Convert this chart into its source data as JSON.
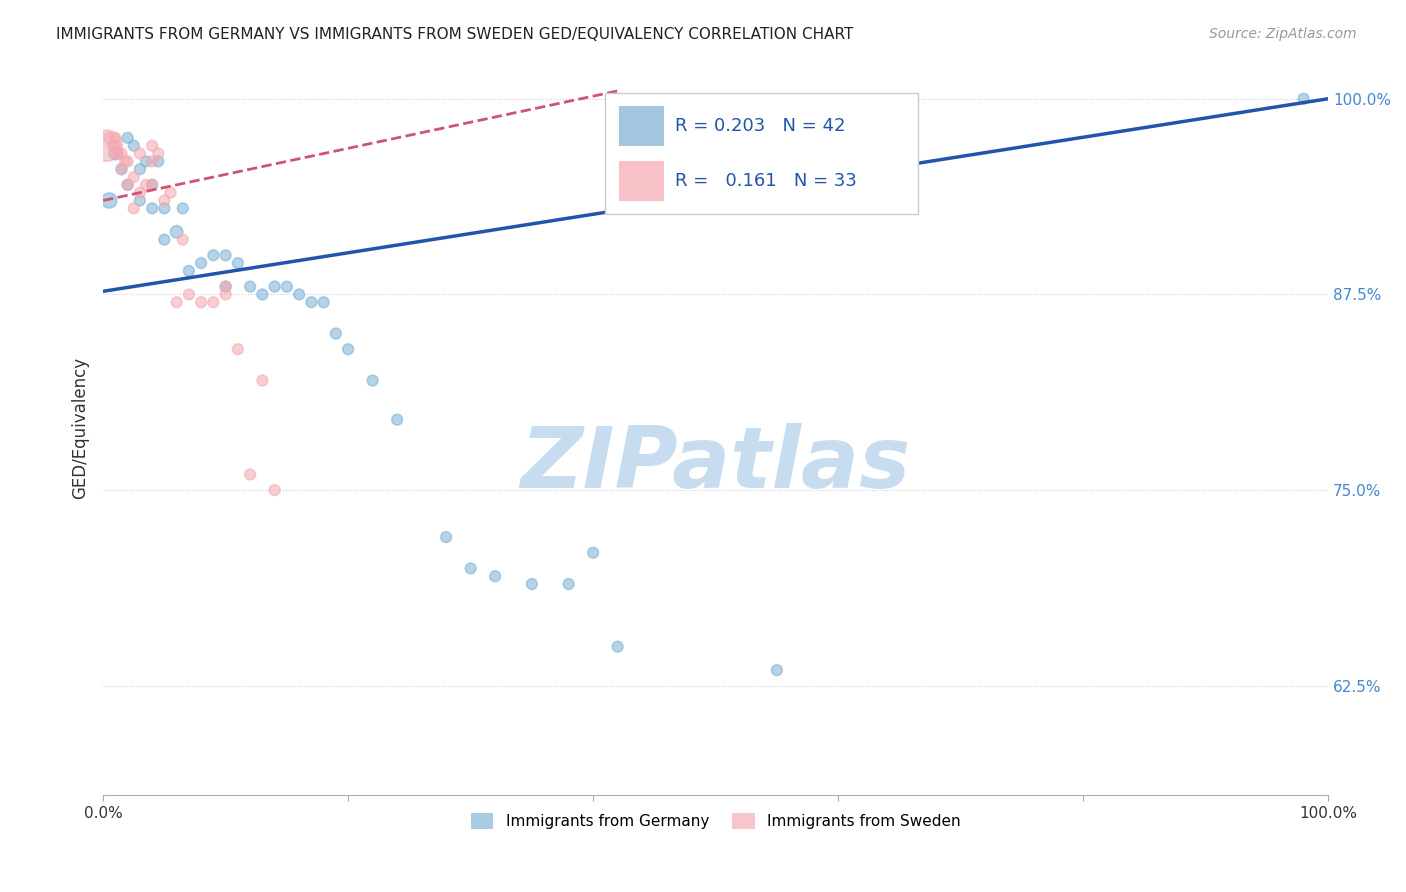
{
  "title": "IMMIGRANTS FROM GERMANY VS IMMIGRANTS FROM SWEDEN GED/EQUIVALENCY CORRELATION CHART",
  "source_text": "Source: ZipAtlas.com",
  "ylabel": "GED/Equivalency",
  "legend_blue_label": "Immigrants from Germany",
  "legend_pink_label": "Immigrants from Sweden",
  "R_blue": 0.203,
  "N_blue": 42,
  "R_pink": 0.161,
  "N_pink": 33,
  "xlim": [
    0.0,
    1.0
  ],
  "ylim": [
    0.555,
    1.025
  ],
  "xticks": [
    0.0,
    0.2,
    0.4,
    0.6,
    0.8,
    1.0
  ],
  "xticklabels": [
    "0.0%",
    "",
    "",
    "",
    "",
    "100.0%"
  ],
  "yticks": [
    0.625,
    0.75,
    0.875,
    1.0
  ],
  "yticklabels": [
    "62.5%",
    "75.0%",
    "87.5%",
    "100.0%"
  ],
  "color_blue": "#7BAFD4",
  "color_pink": "#F4A7B0",
  "trendline_blue": "#2255AA",
  "trendline_pink": "#CC5577",
  "background_color": "#FFFFFF",
  "watermark": "ZIPatlas",
  "watermark_color": "#C8DCF0",
  "blue_x": [
    0.005,
    0.01,
    0.015,
    0.02,
    0.02,
    0.025,
    0.03,
    0.03,
    0.035,
    0.04,
    0.04,
    0.045,
    0.05,
    0.05,
    0.06,
    0.065,
    0.07,
    0.08,
    0.09,
    0.1,
    0.1,
    0.11,
    0.12,
    0.13,
    0.14,
    0.15,
    0.16,
    0.17,
    0.18,
    0.19,
    0.2,
    0.22,
    0.24,
    0.28,
    0.3,
    0.32,
    0.35,
    0.38,
    0.4,
    0.42,
    0.55,
    0.98
  ],
  "blue_y": [
    0.935,
    0.965,
    0.955,
    0.975,
    0.945,
    0.97,
    0.955,
    0.935,
    0.96,
    0.93,
    0.945,
    0.96,
    0.91,
    0.93,
    0.915,
    0.93,
    0.89,
    0.895,
    0.9,
    0.88,
    0.9,
    0.895,
    0.88,
    0.875,
    0.88,
    0.88,
    0.875,
    0.87,
    0.87,
    0.85,
    0.84,
    0.82,
    0.795,
    0.72,
    0.7,
    0.695,
    0.69,
    0.69,
    0.71,
    0.65,
    0.635,
    1.0
  ],
  "blue_sizes": [
    120,
    80,
    60,
    60,
    60,
    60,
    60,
    60,
    60,
    60,
    60,
    60,
    60,
    60,
    80,
    60,
    60,
    60,
    60,
    60,
    60,
    60,
    60,
    60,
    60,
    60,
    60,
    60,
    60,
    60,
    60,
    60,
    60,
    60,
    60,
    60,
    60,
    60,
    60,
    60,
    60,
    60
  ],
  "pink_x": [
    0.003,
    0.005,
    0.008,
    0.01,
    0.01,
    0.012,
    0.015,
    0.015,
    0.018,
    0.02,
    0.02,
    0.025,
    0.025,
    0.03,
    0.03,
    0.035,
    0.04,
    0.04,
    0.04,
    0.045,
    0.05,
    0.055,
    0.06,
    0.065,
    0.07,
    0.08,
    0.09,
    0.1,
    0.1,
    0.11,
    0.12,
    0.13,
    0.14
  ],
  "pink_y": [
    0.97,
    0.975,
    0.97,
    0.975,
    0.97,
    0.965,
    0.965,
    0.955,
    0.96,
    0.96,
    0.945,
    0.95,
    0.93,
    0.94,
    0.965,
    0.945,
    0.945,
    0.96,
    0.97,
    0.965,
    0.935,
    0.94,
    0.87,
    0.91,
    0.875,
    0.87,
    0.87,
    0.875,
    0.88,
    0.84,
    0.76,
    0.82,
    0.75
  ],
  "pink_sizes": [
    500,
    60,
    60,
    60,
    60,
    60,
    60,
    60,
    60,
    60,
    60,
    60,
    60,
    60,
    60,
    60,
    60,
    60,
    60,
    60,
    60,
    60,
    60,
    60,
    60,
    60,
    60,
    60,
    60,
    60,
    60,
    60,
    60
  ],
  "blue_trendline_x0": 0.0,
  "blue_trendline_y0": 0.877,
  "blue_trendline_x1": 1.0,
  "blue_trendline_y1": 1.0,
  "pink_trendline_x0": 0.0,
  "pink_trendline_y0": 0.935,
  "pink_trendline_x1": 0.42,
  "pink_trendline_y1": 1.005
}
